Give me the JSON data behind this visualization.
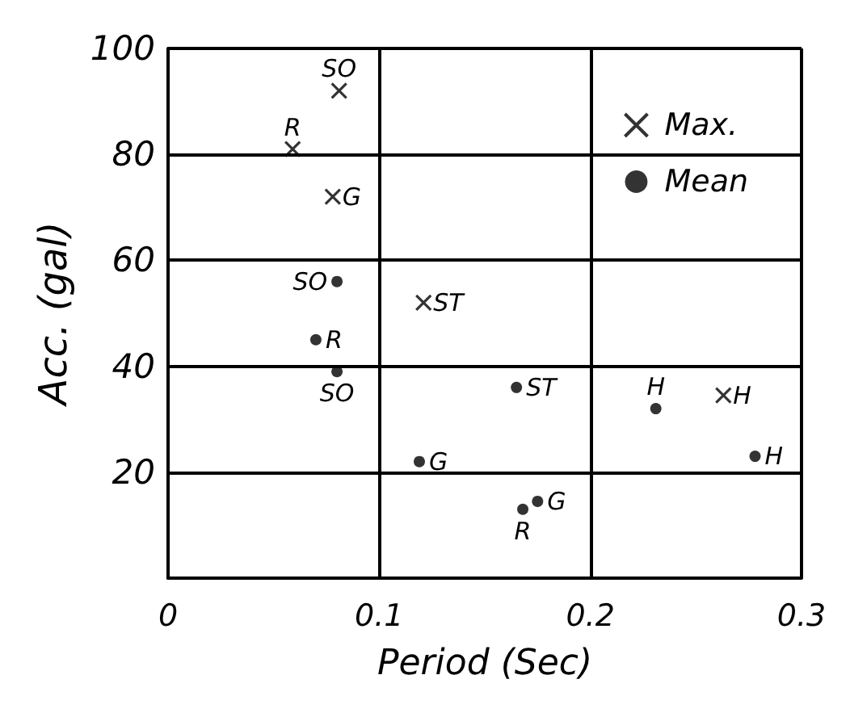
{
  "chart_data": {
    "type": "scatter",
    "xlabel": "Period (Sec)",
    "ylabel": "Acc. (gal)",
    "xlim": [
      0,
      0.3
    ],
    "xticks": [
      0,
      0.1,
      0.2,
      0.3
    ],
    "ylim": [
      0,
      100
    ],
    "yticks": [
      20,
      40,
      60,
      80,
      100
    ],
    "grid": true,
    "legend": "top right",
    "series": [
      {
        "name": "Max.",
        "color": "#000000",
        "marker": "cross",
        "x": [
          0.081,
          0.059,
          0.078,
          0.121,
          0.263
        ],
        "values": [
          92,
          81,
          72,
          52,
          34.5
        ]
      },
      {
        "name": "Mean",
        "color": "#000000",
        "marker": "circle",
        "x": [
          0.08,
          0.07,
          0.08,
          0.165,
          0.119,
          0.231,
          0.278,
          0.168,
          0.175
        ],
        "values": [
          56,
          45,
          39,
          36,
          22,
          32,
          23,
          13,
          14.5
        ]
      }
    ],
    "annotations": [
      {
        "text": "SO",
        "x": 0.081,
        "y": 92
      },
      {
        "text": "R",
        "x": 0.059,
        "y": 81
      },
      {
        "text": "G",
        "x": 0.078,
        "y": 72
      },
      {
        "text": "ST",
        "x": 0.121,
        "y": 52
      },
      {
        "text": "H",
        "x": 0.263,
        "y": 34.5
      },
      {
        "text": "SO",
        "x": 0.08,
        "y": 56
      },
      {
        "text": "R",
        "x": 0.07,
        "y": 45
      },
      {
        "text": "SO",
        "x": 0.08,
        "y": 39
      },
      {
        "text": "ST",
        "x": 0.165,
        "y": 36
      },
      {
        "text": "G",
        "x": 0.119,
        "y": 22
      },
      {
        "text": "H",
        "x": 0.231,
        "y": 32
      },
      {
        "text": "H",
        "x": 0.278,
        "y": 23
      },
      {
        "text": "R",
        "x": 0.168,
        "y": 13
      },
      {
        "text": "G",
        "x": 0.175,
        "y": 14.5
      }
    ]
  }
}
